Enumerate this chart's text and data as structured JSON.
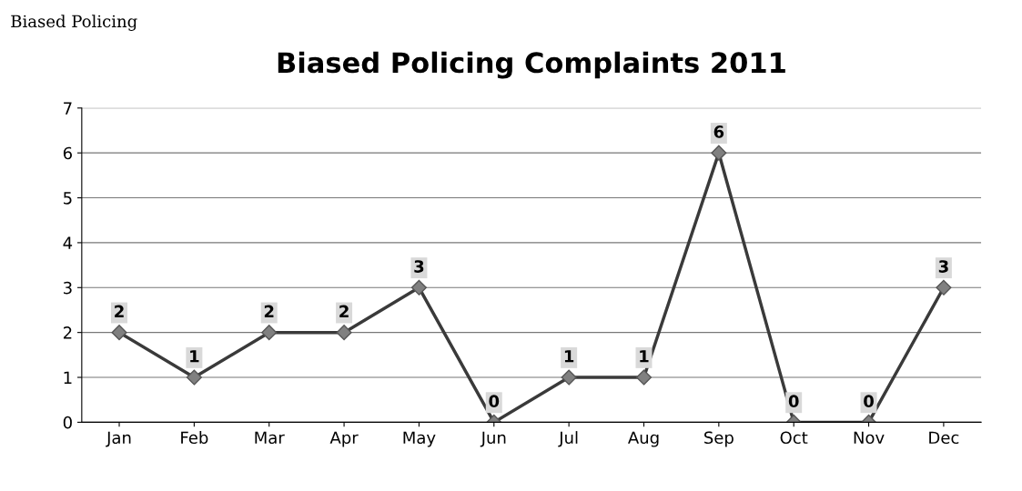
{
  "chart_data": {
    "type": "line",
    "title": "Biased Policing Complaints 2011",
    "categories": [
      "Jan",
      "Feb",
      "Mar",
      "Apr",
      "May",
      "Jun",
      "Jul",
      "Aug",
      "Sep",
      "Oct",
      "Nov",
      "Dec"
    ],
    "series": [
      {
        "color": "#3a3a3a",
        "values": [
          2,
          1,
          2,
          2,
          3,
          0,
          1,
          1,
          6,
          0,
          0,
          3
        ]
      }
    ],
    "ylim": [
      0,
      7
    ],
    "yticks": [
      0,
      1,
      2,
      3,
      4,
      5,
      6,
      7
    ],
    "grid": "y",
    "marker": "diamond",
    "line_style": "solid",
    "data_labels": true,
    "legend": false,
    "annotations": [
      "Biased Policing"
    ]
  }
}
